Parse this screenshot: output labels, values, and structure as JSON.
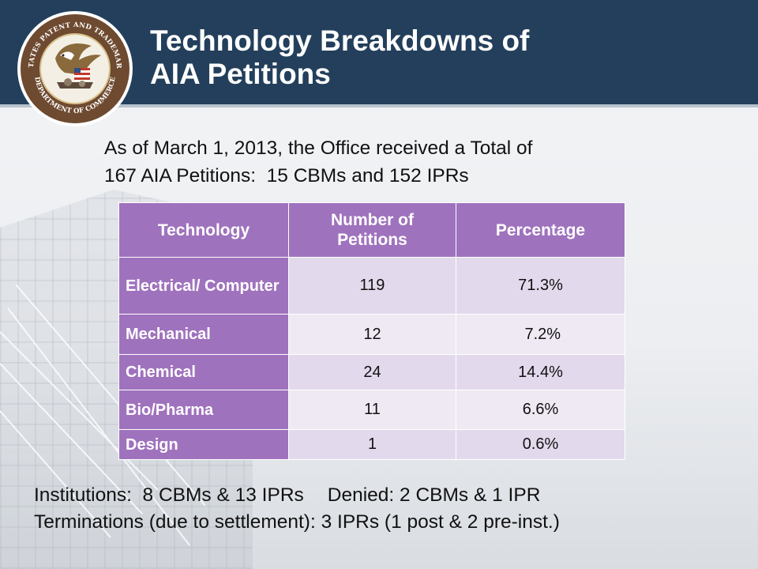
{
  "header": {
    "title_line1": "Technology Breakdowns of",
    "title_line2": "AIA Petitions",
    "seal_text_top": "UNITED STATES PATENT AND TRADEMARK OFFICE",
    "seal_text_bottom": "DEPARTMENT OF COMMERCE"
  },
  "intro": {
    "line1": "As of March 1, 2013, the Office received a Total of",
    "line2": "167 AIA Petitions:  15 CBMs and 152 IPRs"
  },
  "table": {
    "headers": {
      "technology": "Technology",
      "petitions": "Number of Petitions",
      "percentage": "Percentage"
    },
    "rows": [
      {
        "technology": "Electrical/ Computer",
        "petitions": "119",
        "percentage": "71.3%"
      },
      {
        "technology": "Mechanical",
        "petitions": "12",
        "percentage": " 7.2%"
      },
      {
        "technology": "Chemical",
        "petitions": "24",
        "percentage": "14.4%"
      },
      {
        "technology": "Bio/Pharma",
        "petitions": "11",
        "percentage": "6.6%"
      },
      {
        "technology": "Design",
        "petitions": "1",
        "percentage": "0.6%"
      }
    ]
  },
  "footer": {
    "institutions": "Institutions:  8 CBMs & 13 IPRs",
    "denied": "Denied: 2 CBMs & 1 IPR",
    "terminations": "Terminations (due to settlement): 3 IPRs (1 post & 2 pre-inst.)"
  },
  "colors": {
    "header": "#233f5b",
    "table_header": "#9f72bd",
    "table_cell": "#e3d9ec"
  }
}
